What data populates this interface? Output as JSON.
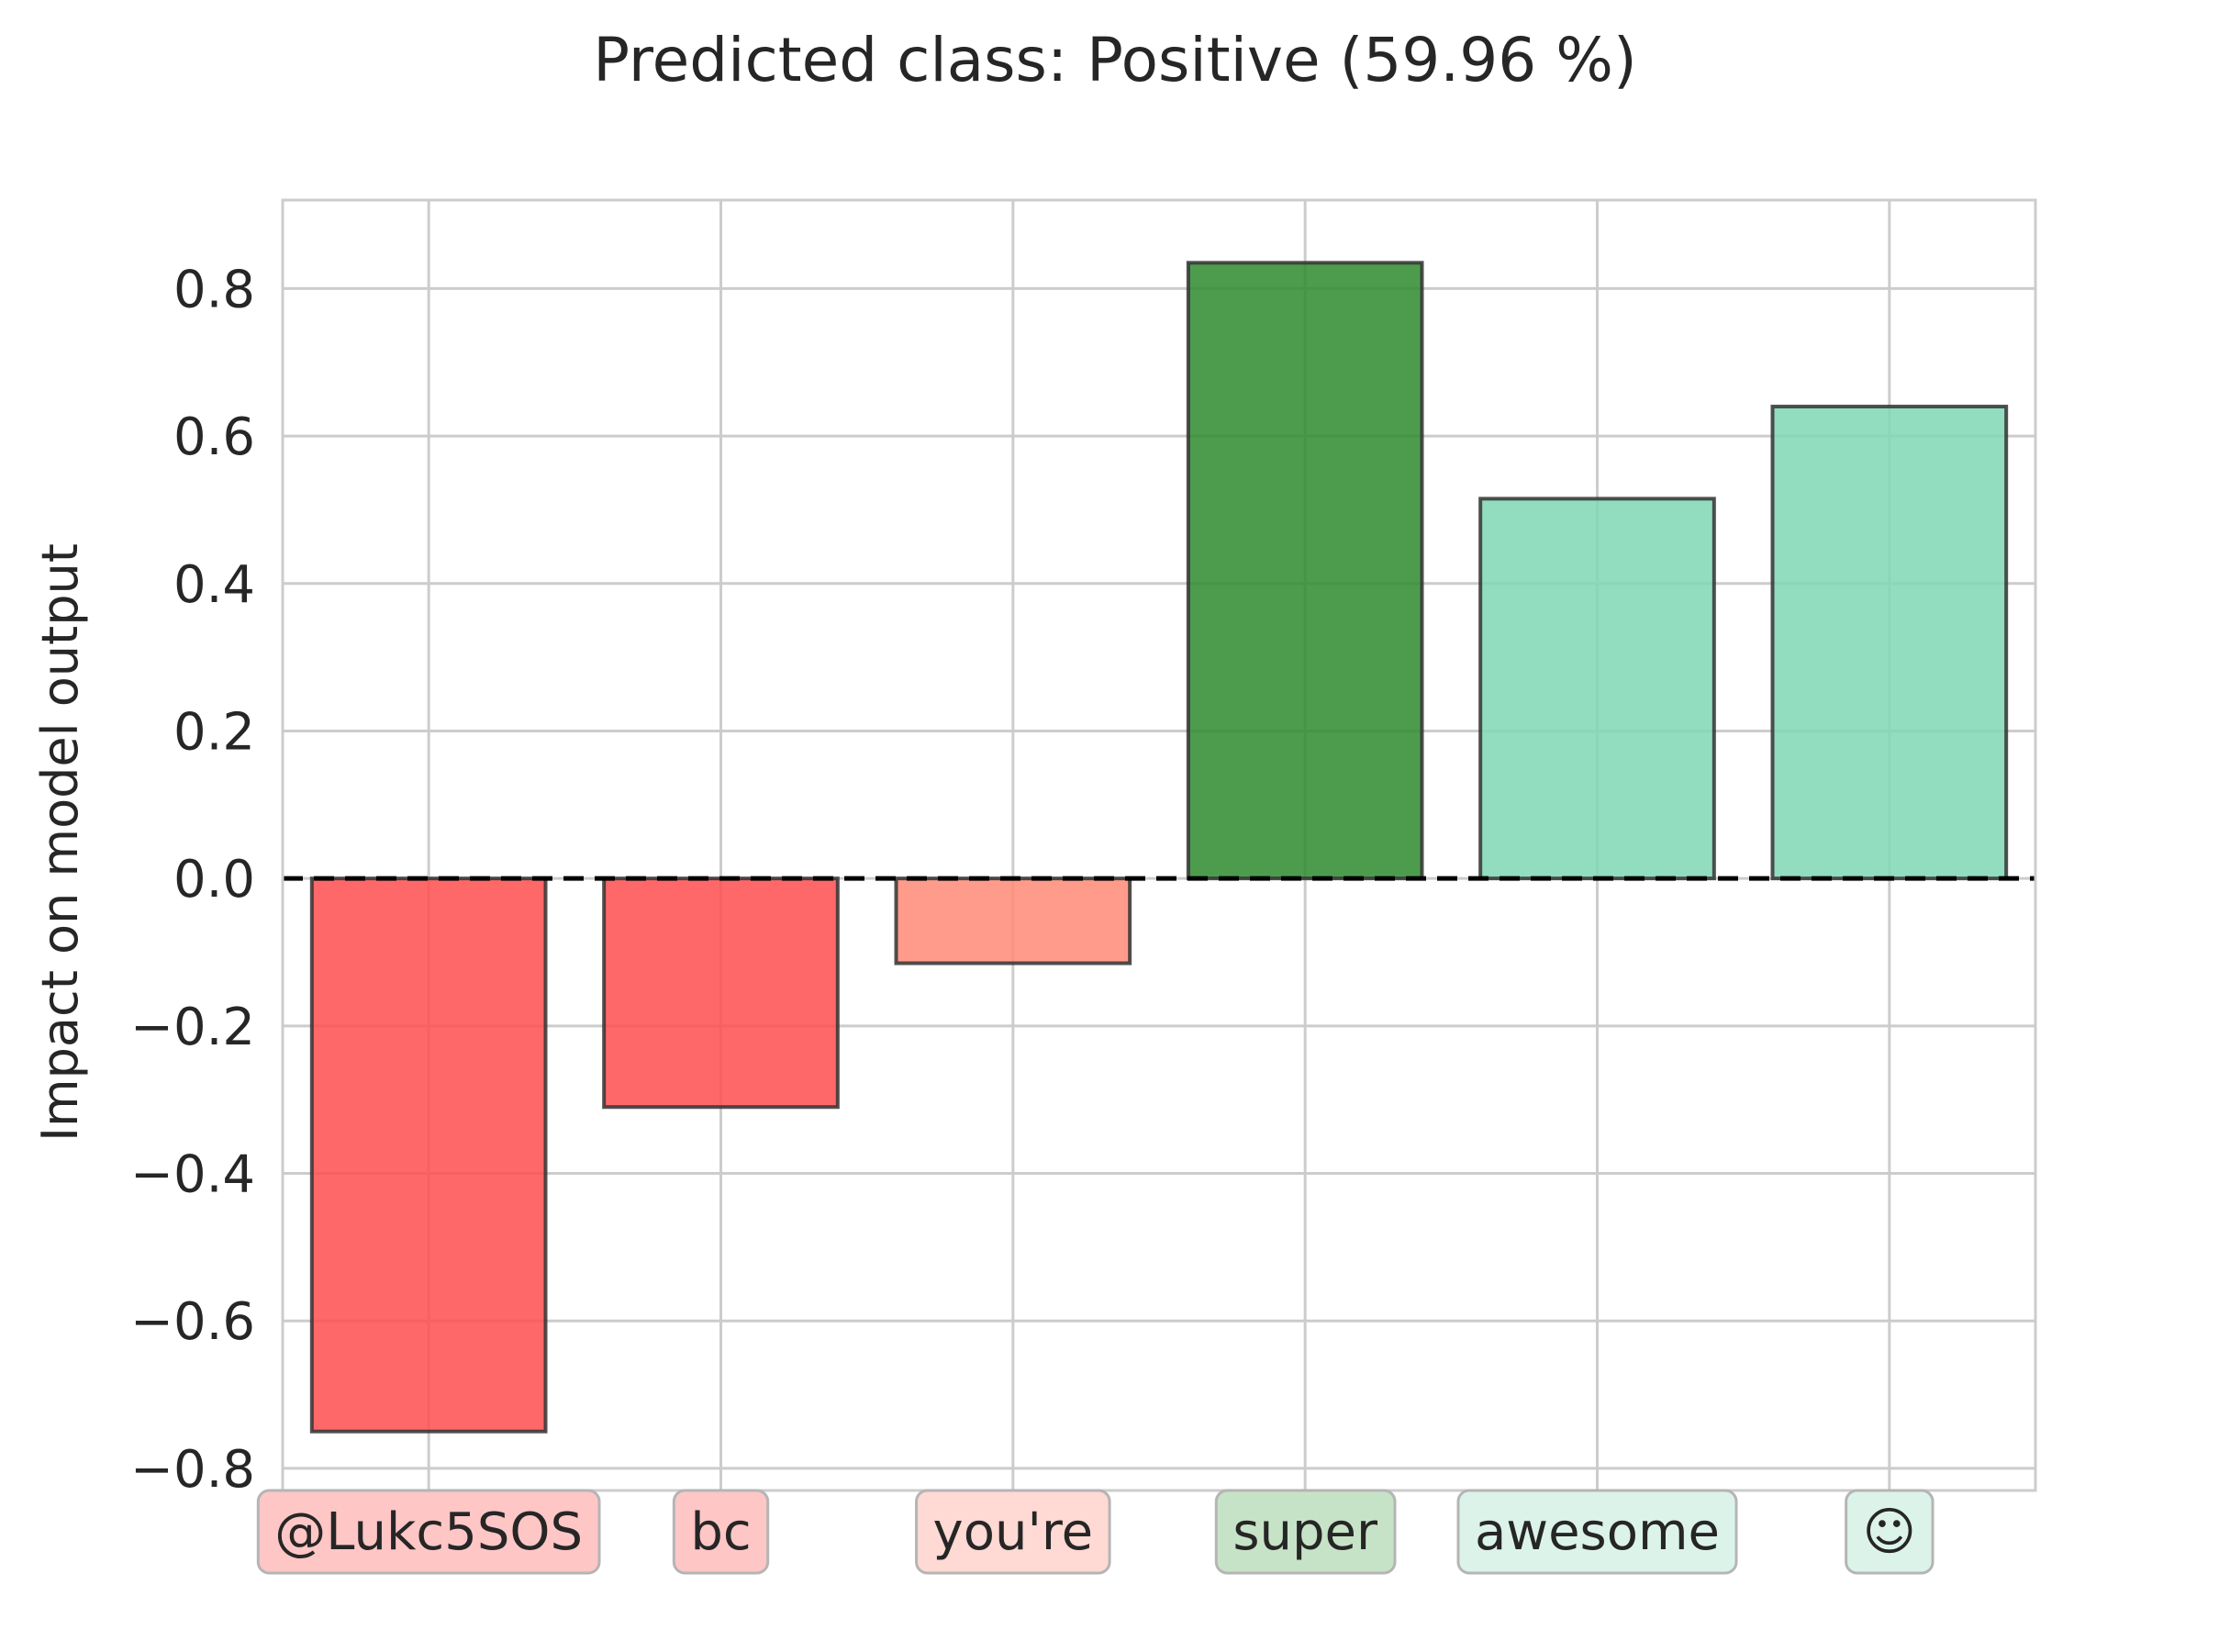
{
  "chart_data": {
    "type": "bar",
    "title": "Predicted class: Positive (59.96 %)",
    "xlabel": "",
    "ylabel": "Impact on model output",
    "categories": [
      "@Lukc5SOS",
      "bc",
      "you're",
      "super",
      "awesome",
      "☺"
    ],
    "values": [
      -0.75,
      -0.31,
      -0.115,
      0.835,
      0.515,
      0.64
    ],
    "bar_colors": [
      "#ff4d4d",
      "#ff4d4d",
      "#ff8a75",
      "#2e8b2e",
      "#7fd6b5",
      "#7fd6b5"
    ],
    "token_colors": [
      "#ffc6c6",
      "#ffc6c6",
      "#ffd9d3",
      "#c7e3c7",
      "#dcf3ea",
      "#dcf3ea"
    ],
    "yticks": [
      -0.8,
      -0.6,
      -0.4,
      -0.2,
      0.0,
      0.2,
      0.4,
      0.6,
      0.8
    ],
    "ytick_labels": [
      "−0.8",
      "−0.6",
      "−0.4",
      "−0.2",
      "0.0",
      "0.2",
      "0.4",
      "0.6",
      "0.8"
    ],
    "ylim": [
      -0.83,
      0.92
    ],
    "grid": true,
    "zero_line": "dashed"
  }
}
